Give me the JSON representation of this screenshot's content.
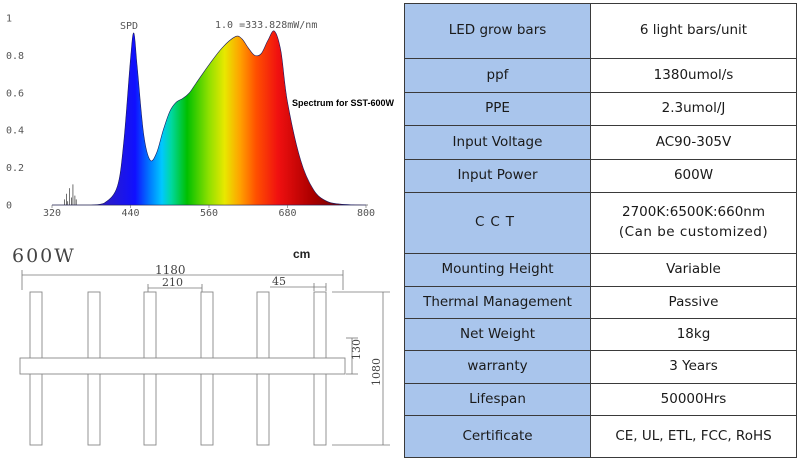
{
  "spectrum": {
    "spd_label": "SPD",
    "scale_note": "1.0 =333.828mW/nm",
    "caption": "Spectrum for SST-600W",
    "y_ticks": [
      "1",
      "0.8",
      "0.6",
      "0.4",
      "0.2",
      "0"
    ],
    "x_ticks": [
      "320",
      "440",
      "560",
      "680",
      "800"
    ]
  },
  "chart_data": {
    "type": "area",
    "title": "SPD",
    "subtitle": "1.0 =333.828mW/nm",
    "annotation": "Spectrum for SST-600W",
    "xlim": [
      320,
      800
    ],
    "ylim": [
      0,
      1
    ],
    "grid": false,
    "x": [
      320,
      340,
      360,
      380,
      400,
      420,
      430,
      440,
      445,
      450,
      460,
      470,
      480,
      490,
      500,
      510,
      520,
      530,
      540,
      560,
      580,
      600,
      610,
      620,
      630,
      640,
      650,
      660,
      670,
      680,
      700,
      720,
      740,
      760,
      780,
      800
    ],
    "y": [
      0,
      0,
      0,
      0,
      0.01,
      0.1,
      0.35,
      0.78,
      0.92,
      0.75,
      0.38,
      0.24,
      0.28,
      0.4,
      0.5,
      0.55,
      0.57,
      0.6,
      0.65,
      0.75,
      0.84,
      0.9,
      0.89,
      0.84,
      0.8,
      0.81,
      0.88,
      0.93,
      0.82,
      0.55,
      0.24,
      0.08,
      0.02,
      0.005,
      0.001,
      0
    ]
  },
  "drawing": {
    "model": "600W",
    "unit": "cm",
    "dim_total": "1180",
    "dim_spacing": "210",
    "dim_bar": "45",
    "dim_center": "130",
    "dim_height": "1080"
  },
  "specs": [
    {
      "label": "LED grow bars",
      "value": "6 light bars/unit"
    },
    {
      "label": "ppf",
      "value": "1380umol/s"
    },
    {
      "label": "PPE",
      "value": "2.3umol/J"
    },
    {
      "label": "Input Voltage",
      "value": "AC90-305V"
    },
    {
      "label": "Input Power",
      "value": "600W"
    },
    {
      "label": "CCT",
      "value": "2700K:6500K:660nm",
      "value2": "(Can be customized)"
    },
    {
      "label": "Mounting Height",
      "value": "Variable"
    },
    {
      "label": "Thermal Management",
      "value": "Passive"
    },
    {
      "label": "Net Weight",
      "value": "18kg"
    },
    {
      "label": "warranty",
      "value": "3 Years"
    },
    {
      "label": "Lifespan",
      "value": "50000Hrs"
    },
    {
      "label": "Certificate",
      "value": "CE, UL, ETL, FCC, RoHS"
    }
  ]
}
